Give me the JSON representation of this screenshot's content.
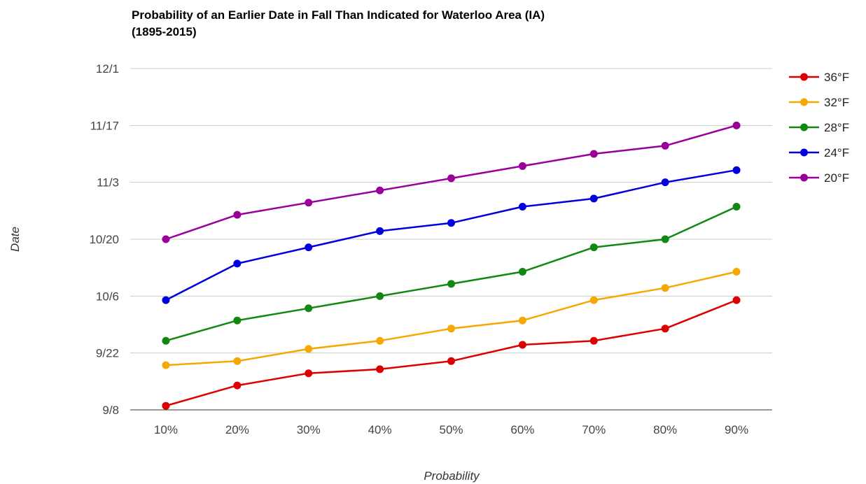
{
  "chart_data": {
    "type": "line",
    "title": "Probability of an Earlier Date in Fall Than Indicated for Waterloo Area (IA)",
    "subtitle": "(1895-2015)",
    "xlabel": "Probability",
    "ylabel": "Date",
    "categories": [
      "10%",
      "20%",
      "30%",
      "40%",
      "50%",
      "60%",
      "70%",
      "80%",
      "90%"
    ],
    "y_ticks": [
      "9/8",
      "9/22",
      "10/6",
      "10/20",
      "11/3",
      "11/17",
      "12/1"
    ],
    "ylim": [
      "9/8",
      "12/1"
    ],
    "grid": true,
    "legend_position": "right",
    "series": [
      {
        "name": "36°F",
        "color": "#dc0000",
        "values": [
          "9/9",
          "9/14",
          "9/17",
          "9/18",
          "9/20",
          "9/24",
          "9/25",
          "9/28",
          "10/5"
        ]
      },
      {
        "name": "32°F",
        "color": "#f5a800",
        "values": [
          "9/19",
          "9/20",
          "9/23",
          "9/25",
          "9/28",
          "9/30",
          "10/5",
          "10/8",
          "10/12"
        ]
      },
      {
        "name": "28°F",
        "color": "#118811",
        "values": [
          "9/25",
          "9/30",
          "10/3",
          "10/6",
          "10/9",
          "10/12",
          "10/18",
          "10/20",
          "10/28"
        ]
      },
      {
        "name": "24°F",
        "color": "#0000dd",
        "values": [
          "10/5",
          "10/14",
          "10/18",
          "10/22",
          "10/24",
          "10/28",
          "10/30",
          "11/3",
          "11/6"
        ]
      },
      {
        "name": "20°F",
        "color": "#990099",
        "values": [
          "10/20",
          "10/26",
          "10/29",
          "11/1",
          "11/4",
          "11/7",
          "11/10",
          "11/12",
          "11/17"
        ]
      }
    ]
  }
}
